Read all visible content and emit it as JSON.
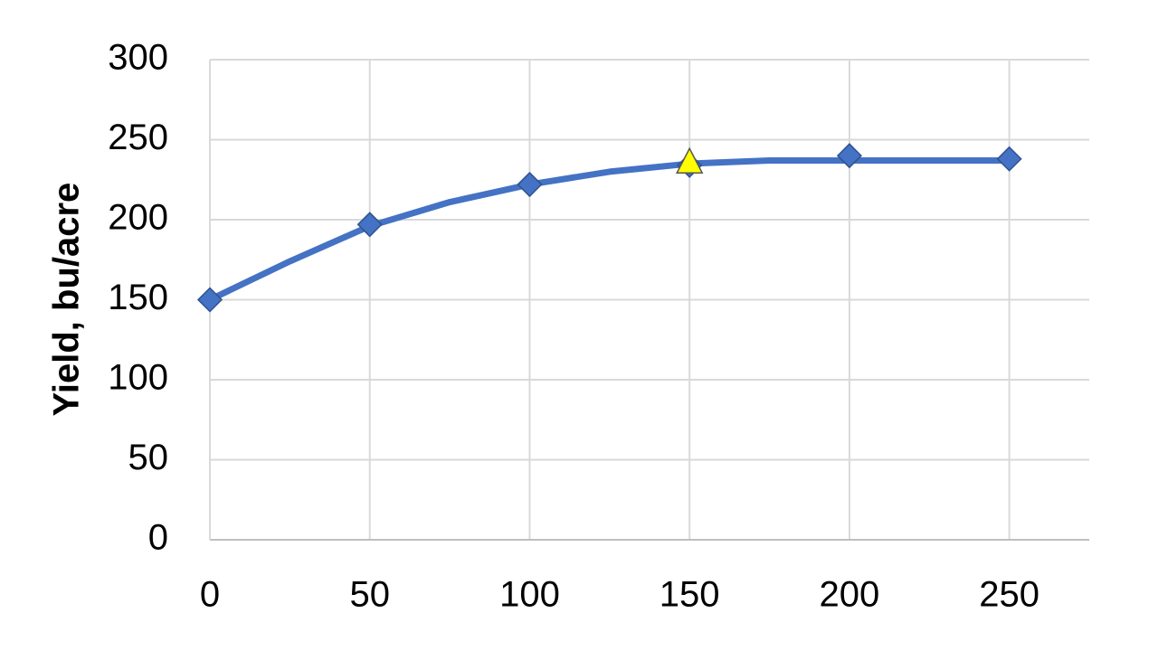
{
  "chart_data": {
    "type": "line",
    "y_label": "Yield, bu/acre",
    "xlim": [
      0,
      275
    ],
    "xticks": [
      0,
      50,
      100,
      150,
      200,
      250
    ],
    "ylim": [
      0,
      300
    ],
    "yticks": [
      0,
      50,
      100,
      150,
      200,
      250,
      300
    ],
    "grid": true,
    "series": [
      {
        "color": "#4472c4",
        "line": true,
        "marker": "none",
        "x": [
          0,
          25,
          50,
          75,
          100,
          125,
          150,
          175,
          200,
          225,
          250
        ],
        "values": [
          150,
          174,
          196,
          211,
          222,
          230,
          235,
          237,
          237,
          237,
          237
        ]
      },
      {
        "color": "#4472c4",
        "line": false,
        "marker": "diamond",
        "x": [
          0,
          50,
          100,
          150,
          200,
          250
        ],
        "values": [
          150,
          197,
          222,
          234,
          240,
          238
        ]
      },
      {
        "color": "#ffff00",
        "line": false,
        "marker": "triangle",
        "x": [
          150
        ],
        "values": [
          236
        ]
      }
    ]
  }
}
